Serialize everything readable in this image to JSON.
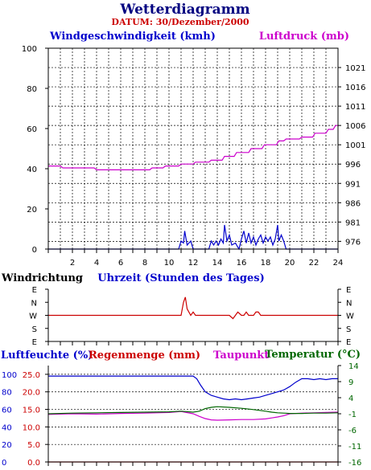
{
  "title": "Wetterdiagramm",
  "date_label": "DATUM: 30/Dezember/2000",
  "colors": {
    "title": "#000080",
    "date": "#cc0000",
    "wind": "#0000cc",
    "pressure": "#cc00cc",
    "direction": "#cc0000",
    "humidity": "#0000cc",
    "rain": "#cc0000",
    "dewpoint": "#cc00cc",
    "temperature": "#006600"
  },
  "chart_data": [
    {
      "type": "line",
      "title": "",
      "left_axis_label": "Windgeschwindigkeit (kmh)",
      "right_axis_label": "Luftdruck (mb)",
      "xlabel": "Uhrzeit (Stunden des Tages)",
      "x_range": [
        0,
        24
      ],
      "x_ticks": [
        2,
        4,
        6,
        8,
        10,
        12,
        14,
        16,
        18,
        20,
        22,
        24
      ],
      "y_left_range": [
        0,
        100
      ],
      "y_left_ticks": [
        0,
        20,
        40,
        60,
        80,
        100
      ],
      "y_right_range": [
        974,
        1026
      ],
      "y_right_ticks": [
        976,
        981,
        986,
        991,
        996,
        1001,
        1006,
        1011,
        1016,
        1021
      ],
      "grid": true,
      "series": [
        {
          "name": "Windgeschwindigkeit (kmh)",
          "axis": "left",
          "x": [
            0,
            10.8,
            11.0,
            11.2,
            11.3,
            11.5,
            11.8,
            12.0,
            13.3,
            13.5,
            13.7,
            13.9,
            14.1,
            14.3,
            14.5,
            14.6,
            14.8,
            15.0,
            15.2,
            15.5,
            15.8,
            16.0,
            16.2,
            16.4,
            16.6,
            16.8,
            17.0,
            17.2,
            17.4,
            17.6,
            17.8,
            18.0,
            18.2,
            18.4,
            18.6,
            18.8,
            19.0,
            19.1,
            19.3,
            19.5,
            19.7,
            20,
            24
          ],
          "y": [
            0,
            0,
            4,
            3,
            9,
            2,
            4,
            0,
            0,
            4,
            2,
            4,
            2,
            5,
            3,
            12,
            4,
            7,
            2,
            3,
            0,
            5,
            9,
            3,
            8,
            3,
            6,
            2,
            5,
            7,
            3,
            6,
            4,
            6,
            2,
            5,
            12,
            4,
            7,
            4,
            0,
            0,
            0
          ]
        },
        {
          "name": "Luftdruck (mb)",
          "axis": "right",
          "x": [
            0,
            1,
            1.2,
            3.8,
            4,
            8.4,
            8.6,
            9.5,
            9.7,
            10.8,
            11,
            12,
            12.2,
            13.3,
            13.5,
            14.4,
            14.6,
            15.4,
            15.6,
            16.6,
            16.8,
            17.7,
            17.9,
            18.9,
            19.1,
            19.5,
            19.7,
            20.8,
            21,
            21.9,
            22.1,
            23,
            23.2,
            23.6,
            23.8,
            24
          ],
          "y": [
            995.5,
            995.5,
            995,
            995,
            994.5,
            994.5,
            995,
            995,
            995.5,
            995.5,
            996,
            996,
            996.5,
            996.5,
            997,
            997,
            998,
            998,
            999,
            999,
            1000,
            1000,
            1001,
            1001,
            1002,
            1002,
            1002.5,
            1002.5,
            1003,
            1003,
            1004,
            1004,
            1005,
            1005,
            1006,
            1006
          ]
        }
      ]
    },
    {
      "type": "line",
      "title": "Windrichtung",
      "categories": [
        "E",
        "N",
        "W",
        "S",
        "E"
      ],
      "x_range": [
        0,
        24
      ],
      "series": [
        {
          "name": "Windrichtung",
          "x": [
            0,
            11.0,
            11.1,
            11.2,
            11.35,
            11.5,
            11.8,
            12.0,
            12.2,
            14.0,
            14.2,
            15,
            15.3,
            15.5,
            15.7,
            16,
            16.2,
            16.4,
            16.6,
            17,
            17.2,
            17.4,
            17.6,
            18.5,
            18.7,
            20,
            24
          ],
          "y": [
            "W",
            "W",
            "NW",
            "N",
            "E_N",
            "NW",
            "W",
            "WNW",
            "W",
            "W",
            "W",
            "W",
            "WSW",
            "W",
            "WNW",
            "W",
            "W",
            "WNW",
            "W",
            "W",
            "WNW",
            "WNW",
            "W",
            "W",
            "W",
            "W",
            "W"
          ]
        }
      ]
    },
    {
      "type": "line",
      "title": "",
      "labels": [
        "Luftfeuchte (%)",
        "Regenmenge (mm)",
        "Taupunkt",
        "Temperatur (°C)"
      ],
      "x_range": [
        0,
        24
      ],
      "y_humidity_range": [
        0,
        110
      ],
      "y_humidity_ticks": [
        0,
        20,
        40,
        60,
        80,
        100
      ],
      "y_rain_range": [
        0,
        27.5
      ],
      "y_rain_ticks": [
        "0.0",
        "5.0",
        "10.0",
        "15.0",
        "20.0",
        "25.0"
      ],
      "y_temperature_range": [
        -16,
        14
      ],
      "y_temperature_ticks": [
        "14",
        "9",
        "4",
        "-1",
        "-6",
        "-11",
        "-16"
      ],
      "grid": true,
      "series": [
        {
          "name": "Luftfeuchte (%)",
          "x": [
            0,
            12.0,
            12.3,
            12.6,
            13.0,
            13.5,
            14.0,
            14.5,
            15.0,
            15.5,
            16.0,
            16.5,
            17.0,
            17.5,
            18.0,
            18.5,
            19.0,
            19.5,
            20.0,
            20.5,
            21.0,
            21.5,
            22.0,
            22.5,
            23.0,
            23.5,
            24
          ],
          "y": [
            98,
            98,
            95,
            88,
            80,
            76,
            74,
            72,
            71,
            72,
            71,
            72,
            73,
            74,
            76,
            78,
            80,
            82,
            86,
            91,
            95,
            95,
            94,
            95,
            94,
            95,
            95
          ]
        },
        {
          "name": "Regenmenge (mm)",
          "x": [
            0,
            24
          ],
          "y": [
            0.0,
            0.0
          ]
        },
        {
          "name": "Taupunkt",
          "x": [
            0,
            2,
            4,
            6,
            8,
            10,
            11,
            12.0,
            12.5,
            13.0,
            13.5,
            14.0,
            15.0,
            16.0,
            17.0,
            18.0,
            18.5,
            19.0,
            19.5,
            20.0,
            21.0,
            22.0,
            23.0,
            24
          ],
          "y": [
            -1.2,
            -1.0,
            -1.1,
            -0.9,
            -0.8,
            -0.6,
            -0.3,
            -1.0,
            -1.8,
            -2.5,
            -2.9,
            -3.0,
            -2.9,
            -2.8,
            -2.8,
            -2.6,
            -2.3,
            -2.0,
            -1.6,
            -1.0,
            -0.8,
            -0.7,
            -0.6,
            -0.5
          ]
        },
        {
          "name": "Temperatur (°C)",
          "x": [
            0,
            2,
            4,
            6,
            8,
            10,
            11,
            12.0,
            12.5,
            13.0,
            13.5,
            14.0,
            15.0,
            16.0,
            17.0,
            18.0,
            18.5,
            19.0,
            19.5,
            20.0,
            21.0,
            22.0,
            23.0,
            24
          ],
          "y": [
            -1.0,
            -0.8,
            -0.7,
            -0.6,
            -0.5,
            -0.4,
            -0.2,
            -0.5,
            -0.2,
            0.6,
            1.0,
            1.2,
            1.0,
            0.7,
            0.3,
            -0.2,
            -0.5,
            -0.7,
            -0.8,
            -0.9,
            -0.9,
            -0.8,
            -0.8,
            -0.7
          ]
        }
      ]
    }
  ]
}
